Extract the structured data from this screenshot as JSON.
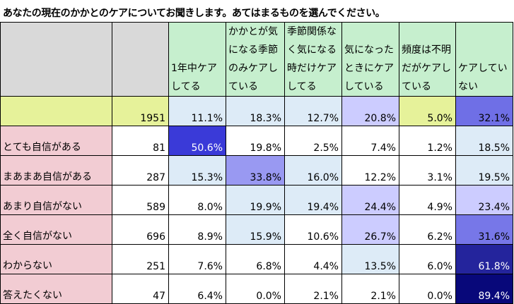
{
  "title": "あなたの現在のかかとのケアについてお聞きします。あてはまるものを選んでください。",
  "columns": [
    {
      "label": "1年中ケアしてる",
      "header_bg": "#c6efce"
    },
    {
      "label": "かかとが気になる季節のみケアしている",
      "header_bg": "#c6efce"
    },
    {
      "label": "季節関係なく気になる時だけケアしてる",
      "header_bg": "#c6efce"
    },
    {
      "label": "気になったときにケアしている",
      "header_bg": "#c6efce"
    },
    {
      "label": "頻度は不明だがケアしている",
      "header_bg": "#c6efce"
    },
    {
      "label": "ケアしていない",
      "header_bg": "#c6efce"
    }
  ],
  "total_row": {
    "label": "",
    "n": "1951",
    "values": [
      "11.1%",
      "18.3%",
      "12.7%",
      "20.8%",
      "5.0%",
      "32.1%"
    ],
    "colors": [
      "#ddebf7",
      "#ddebf7",
      "#ddebf7",
      "#ccccff",
      "#e6f29a",
      "#6f6fe6"
    ]
  },
  "rows": [
    {
      "label": "とても自信がある",
      "n": "81",
      "values": [
        "50.6%",
        "19.8%",
        "2.5%",
        "7.4%",
        "1.2%",
        "18.5%"
      ],
      "colors": [
        "#3a3ad8",
        "#ffffff",
        "#ffffff",
        "#ffffff",
        "#ffffff",
        "#ddebf7"
      ]
    },
    {
      "label": "まあまあ自信がある",
      "n": "287",
      "values": [
        "15.3%",
        "33.8%",
        "16.0%",
        "12.2%",
        "3.1%",
        "19.5%"
      ],
      "colors": [
        "#ddebf7",
        "#9999f2",
        "#ddebf7",
        "#ffffff",
        "#ffffff",
        "#ddebf7"
      ]
    },
    {
      "label": "あまり自信がない",
      "n": "589",
      "values": [
        "8.0%",
        "19.9%",
        "19.4%",
        "24.4%",
        "4.9%",
        "23.4%"
      ],
      "colors": [
        "#ffffff",
        "#ddebf7",
        "#ddebf7",
        "#ccccff",
        "#ffffff",
        "#ccccff"
      ]
    },
    {
      "label": "全く自信がない",
      "n": "696",
      "values": [
        "8.9%",
        "15.9%",
        "10.6%",
        "26.7%",
        "6.2%",
        "31.6%"
      ],
      "colors": [
        "#ffffff",
        "#ddebf7",
        "#ffffff",
        "#ccccff",
        "#ffffff",
        "#7777e8"
      ]
    },
    {
      "label": "わからない",
      "n": "251",
      "values": [
        "7.6%",
        "6.8%",
        "4.4%",
        "13.5%",
        "6.0%",
        "61.8%"
      ],
      "colors": [
        "#ffffff",
        "#ffffff",
        "#ffffff",
        "#ddebf7",
        "#ffffff",
        "#24249c"
      ]
    },
    {
      "label": "答えたくない",
      "n": "47",
      "values": [
        "6.4%",
        "0.0%",
        "2.1%",
        "2.1%",
        "0.0%",
        "89.4%"
      ],
      "colors": [
        "#ffffff",
        "#ffffff",
        "#ffffff",
        "#ffffff",
        "#ffffff",
        "#08087a"
      ]
    }
  ],
  "colors": {
    "header_blank": "#d9d9d9",
    "header_green": "#c6efce",
    "total_row_bg": "#e6f29a",
    "row_label_bg": "#f2ccd3",
    "n_col_bg": "#ffffff",
    "dark_text": "#ffffff"
  }
}
